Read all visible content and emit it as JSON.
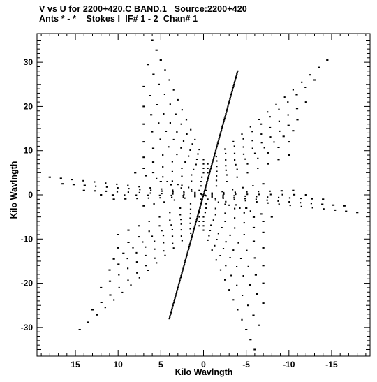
{
  "header": {
    "line1": "V vs U for 2200+420.C BAND.1   Source:2200+420",
    "line2": "Ants * - *    Stokes I  IF# 1 - 2  Chan# 1"
  },
  "chart_data": {
    "type": "scatter",
    "xlabel": "Kilo Wavlngth",
    "ylabel": "Kilo Wavlngth",
    "xlim": [
      19.5,
      -19.5
    ],
    "ylim": [
      -36.5,
      36.5
    ],
    "x_ticks": [
      15,
      10,
      5,
      0,
      -5,
      -10,
      -15
    ],
    "x_tick_labels": [
      "15",
      "10",
      "5",
      "0",
      "-5",
      "-10",
      "-15"
    ],
    "y_ticks": [
      -30,
      -20,
      -10,
      0,
      10,
      20,
      30
    ],
    "y_tick_labels": [
      "-30",
      "-20",
      "-10",
      "0",
      "10",
      "20",
      "30"
    ],
    "grid": false,
    "point_color": "#000000",
    "baseline_tracks": [
      {
        "start": [
          -0.5,
          7.0
        ],
        "end": [
          -14.5,
          30.5
        ]
      },
      {
        "start": [
          -0.5,
          6.0
        ],
        "end": [
          -13.0,
          26.0
        ]
      },
      {
        "start": [
          -0.5,
          5.0
        ],
        "end": [
          -12.0,
          21.0
        ]
      },
      {
        "start": [
          -0.5,
          4.0
        ],
        "end": [
          -11.0,
          17.0
        ]
      },
      {
        "start": [
          -0.4,
          3.0
        ],
        "end": [
          -10.5,
          14.5
        ]
      },
      {
        "start": [
          -0.3,
          2.0
        ],
        "end": [
          -10.0,
          12.0
        ]
      },
      {
        "start": [
          -0.3,
          1.0
        ],
        "end": [
          -10.0,
          9.0
        ]
      },
      {
        "start": [
          0.0,
          8.0
        ],
        "end": [
          6.0,
          35.0
        ]
      },
      {
        "start": [
          0.0,
          7.0
        ],
        "end": [
          6.5,
          29.5
        ]
      },
      {
        "start": [
          0.0,
          6.0
        ],
        "end": [
          7.0,
          24.5
        ]
      },
      {
        "start": [
          0.0,
          5.0
        ],
        "end": [
          7.0,
          20.0
        ]
      },
      {
        "start": [
          0.2,
          4.0
        ],
        "end": [
          7.0,
          16.0
        ]
      },
      {
        "start": [
          0.3,
          3.0
        ],
        "end": [
          7.0,
          12.0
        ]
      },
      {
        "start": [
          0.3,
          2.0
        ],
        "end": [
          7.0,
          8.5
        ]
      },
      {
        "start": [
          0.5,
          1.0
        ],
        "end": [
          8.0,
          5.0
        ]
      },
      {
        "start": [
          1.0,
          0.5
        ],
        "end": [
          18.0,
          4.0
        ]
      },
      {
        "start": [
          1.0,
          0.3
        ],
        "end": [
          16.5,
          2.5
        ]
      },
      {
        "start": [
          1.0,
          0.0
        ],
        "end": [
          14.0,
          1.0
        ]
      },
      {
        "start": [
          1.0,
          -0.2
        ],
        "end": [
          12.0,
          0.0
        ]
      },
      {
        "start": [
          1.0,
          -0.4
        ],
        "end": [
          10.5,
          -1.0
        ]
      },
      {
        "start": [
          0.3,
          0.2
        ],
        "end": [
          7.0,
          6.0
        ]
      },
      {
        "start": [
          0.2,
          0.1
        ],
        "end": [
          5.0,
          3.0
        ]
      },
      {
        "start": [
          -1.0,
          0.3
        ],
        "end": [
          -7.0,
          2.5
        ]
      },
      {
        "start": [
          0.0,
          0.0
        ],
        "end": [
          -4.0,
          28.0
        ]
      },
      {
        "start": [
          0.5,
          -7.0
        ],
        "end": [
          14.5,
          -30.5
        ]
      },
      {
        "start": [
          0.5,
          -6.0
        ],
        "end": [
          13.0,
          -26.0
        ]
      },
      {
        "start": [
          0.5,
          -5.0
        ],
        "end": [
          12.0,
          -21.0
        ]
      },
      {
        "start": [
          0.5,
          -4.0
        ],
        "end": [
          11.0,
          -17.0
        ]
      },
      {
        "start": [
          0.4,
          -3.0
        ],
        "end": [
          10.5,
          -14.5
        ]
      },
      {
        "start": [
          0.3,
          -2.0
        ],
        "end": [
          10.0,
          -12.0
        ]
      },
      {
        "start": [
          0.3,
          -1.0
        ],
        "end": [
          10.0,
          -9.0
        ]
      },
      {
        "start": [
          0.0,
          -8.0
        ],
        "end": [
          -6.0,
          -35.0
        ]
      },
      {
        "start": [
          0.0,
          -7.0
        ],
        "end": [
          -6.5,
          -29.5
        ]
      },
      {
        "start": [
          0.0,
          -6.0
        ],
        "end": [
          -7.0,
          -24.5
        ]
      },
      {
        "start": [
          0.0,
          -5.0
        ],
        "end": [
          -7.0,
          -20.0
        ]
      },
      {
        "start": [
          -0.2,
          -4.0
        ],
        "end": [
          -7.0,
          -16.0
        ]
      },
      {
        "start": [
          -0.3,
          -3.0
        ],
        "end": [
          -7.0,
          -12.0
        ]
      },
      {
        "start": [
          -0.3,
          -2.0
        ],
        "end": [
          -7.0,
          -8.5
        ]
      },
      {
        "start": [
          -0.5,
          -1.0
        ],
        "end": [
          -8.0,
          -5.0
        ]
      },
      {
        "start": [
          -1.0,
          -0.5
        ],
        "end": [
          -18.0,
          -4.0
        ]
      },
      {
        "start": [
          -1.0,
          -0.3
        ],
        "end": [
          -16.5,
          -2.5
        ]
      },
      {
        "start": [
          -1.0,
          0.0
        ],
        "end": [
          -14.0,
          -1.0
        ]
      },
      {
        "start": [
          -1.0,
          0.2
        ],
        "end": [
          -12.0,
          0.0
        ]
      },
      {
        "start": [
          -1.0,
          0.4
        ],
        "end": [
          -10.5,
          1.0
        ]
      },
      {
        "start": [
          -0.3,
          -0.2
        ],
        "end": [
          -7.0,
          -6.0
        ]
      },
      {
        "start": [
          -0.2,
          -0.1
        ],
        "end": [
          -5.0,
          -3.0
        ]
      },
      {
        "start": [
          1.0,
          -0.3
        ],
        "end": [
          7.0,
          -2.5
        ]
      },
      {
        "start": [
          0.0,
          0.0
        ],
        "end": [
          4.0,
          -28.0
        ]
      }
    ]
  }
}
